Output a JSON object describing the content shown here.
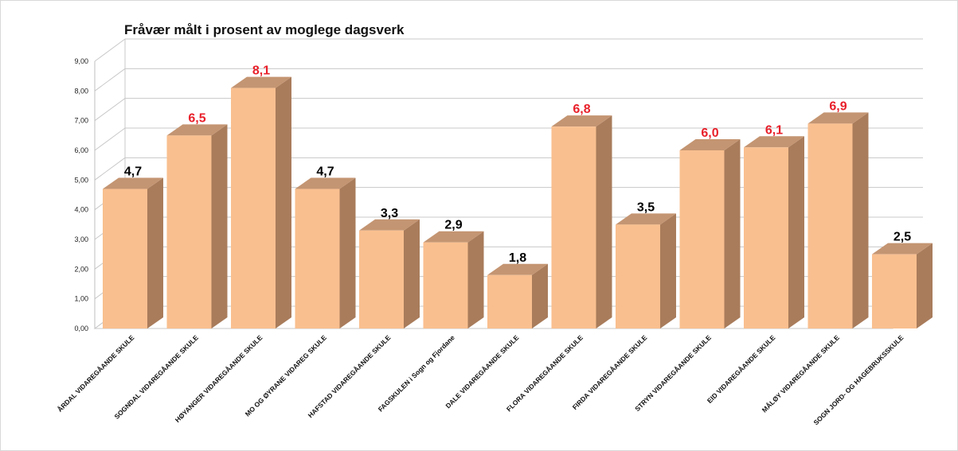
{
  "chart_data": {
    "type": "bar",
    "title": "Fråvær målt i prosent av moglege dagsverk",
    "xlabel": "",
    "ylabel": "",
    "ylim": [
      0,
      9
    ],
    "yticks": [
      "0,00",
      "1,00",
      "2,00",
      "3,00",
      "4,00",
      "5,00",
      "6,00",
      "7,00",
      "8,00",
      "9,00"
    ],
    "grid": true,
    "categories": [
      "ÅRDAL VIDAREGÅANDE SKULE",
      "SOGNDAL VIDAREGÅANDE SKULE",
      "HØYANGER VIDAREGÅANDE SKULE",
      "MO OG ØYRANE VIDAREG SKULE",
      "HAFSTAD VIDAREGÅANDE SKULE",
      "FAGSKULEN i Sogn og Fjordane",
      "DALE VIDAREGÅANDE SKULE",
      "FLORA VIDAREGÅANDE SKULE",
      "FIRDA VIDAREGÅANDE SKULE",
      "STRYN VIDAREGÅANDE SKULE",
      "EID VIDAREGÅANDE SKULE",
      "MÅLØY VIDAREGÅANDE SKULE",
      "SOGN JORD- OG HAGEBRUKSSKULE"
    ],
    "values": [
      4.7,
      6.5,
      8.1,
      4.7,
      3.3,
      2.9,
      1.8,
      6.8,
      3.5,
      6.0,
      6.1,
      6.9,
      2.5
    ],
    "data_labels": [
      "4,7",
      "6,5",
      "8,1",
      "4,7",
      "3,3",
      "2,9",
      "1,8",
      "6,8",
      "3,5",
      "6,0",
      "6,1",
      "6,9",
      "2,5"
    ],
    "label_colors": [
      "#000000",
      "#e8202a",
      "#e8202a",
      "#000000",
      "#000000",
      "#000000",
      "#000000",
      "#e8202a",
      "#000000",
      "#e8202a",
      "#e8202a",
      "#e8202a",
      "#000000"
    ],
    "colors": {
      "bar_front": "#f9bf8f",
      "bar_side": "#a97c5b",
      "bar_top": "#c49572",
      "grid": "#c8c8c8",
      "highlight_label": "#e8202a",
      "normal_label": "#000000"
    }
  }
}
